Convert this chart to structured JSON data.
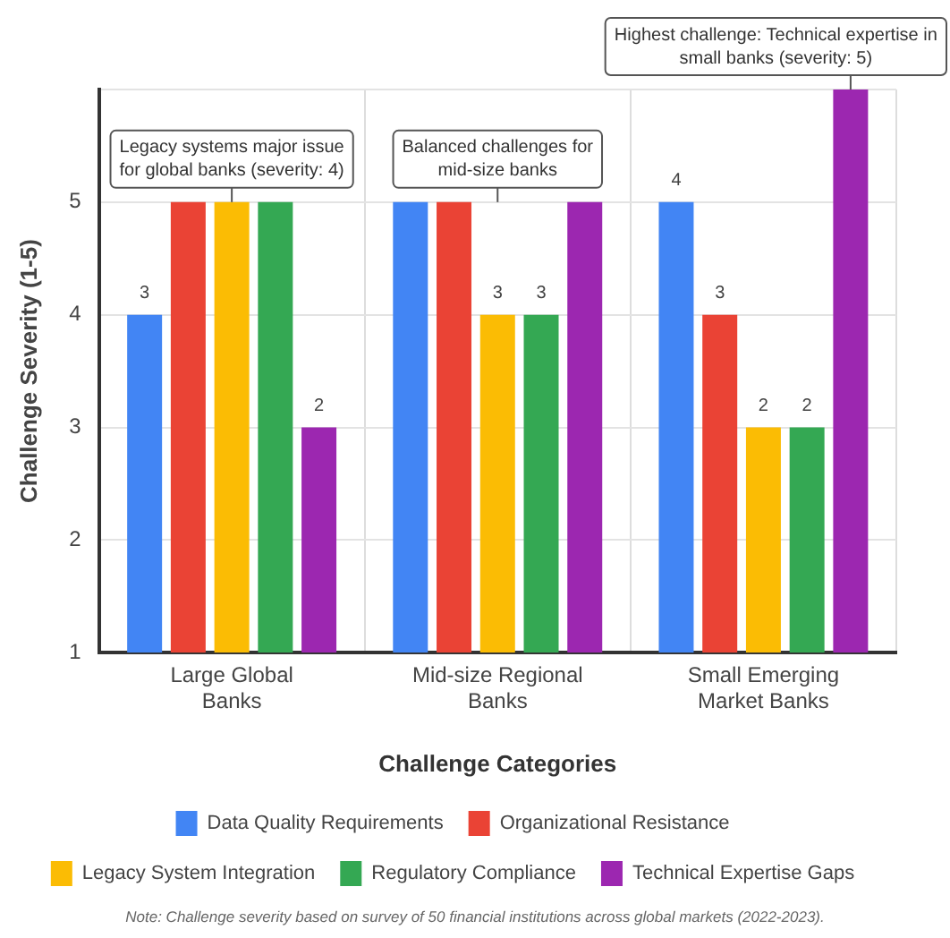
{
  "chart_data": {
    "type": "bar",
    "ylabel": "Challenge Severity (1-5)",
    "xlabel": "Challenge Categories",
    "categories": [
      "Large Global Banks",
      "Mid-size Regional Banks",
      "Small Emerging Market Banks"
    ],
    "series": [
      {
        "name": "Data Quality Requirements",
        "color": "#4285f4",
        "values": [
          3,
          4,
          4
        ],
        "base": [
          1,
          1,
          1
        ],
        "value_labels": [
          "3",
          null,
          "4"
        ]
      },
      {
        "name": "Organizational Resistance",
        "color": "#ea4335",
        "values": [
          4,
          4,
          3
        ],
        "base": [
          1,
          1,
          1
        ],
        "value_labels": [
          null,
          null,
          "3"
        ]
      },
      {
        "name": "Legacy System Integration",
        "color": "#fbbc04",
        "values": [
          4,
          3,
          2
        ],
        "base": [
          1,
          1,
          1
        ],
        "value_labels": [
          null,
          "3",
          "2"
        ]
      },
      {
        "name": "Regulatory Compliance",
        "color": "#34a853",
        "values": [
          4,
          3,
          2
        ],
        "base": [
          1,
          1,
          1
        ],
        "value_labels": [
          null,
          "3",
          "2"
        ]
      },
      {
        "name": "Technical Expertise Gaps",
        "color": "#9c27b0",
        "values": [
          2,
          4,
          5
        ],
        "base": [
          1,
          1,
          1
        ],
        "value_labels": [
          "2",
          null,
          null
        ]
      }
    ],
    "ylim": [
      1,
      6
    ],
    "yticks": [
      1,
      2,
      3,
      4,
      5,
      {
        "value": 6,
        "label": null
      }
    ],
    "grid": true,
    "legend": "bottom",
    "annotations": [
      "Legacy systems major issue for global banks (severity: 4)",
      "Balanced challenges for mid-size banks",
      "Highest challenge: Technical expertise in small banks (severity: 5)",
      "Note: Challenge severity based on survey of 50 financial institutions across global markets (2022-2023)."
    ]
  }
}
